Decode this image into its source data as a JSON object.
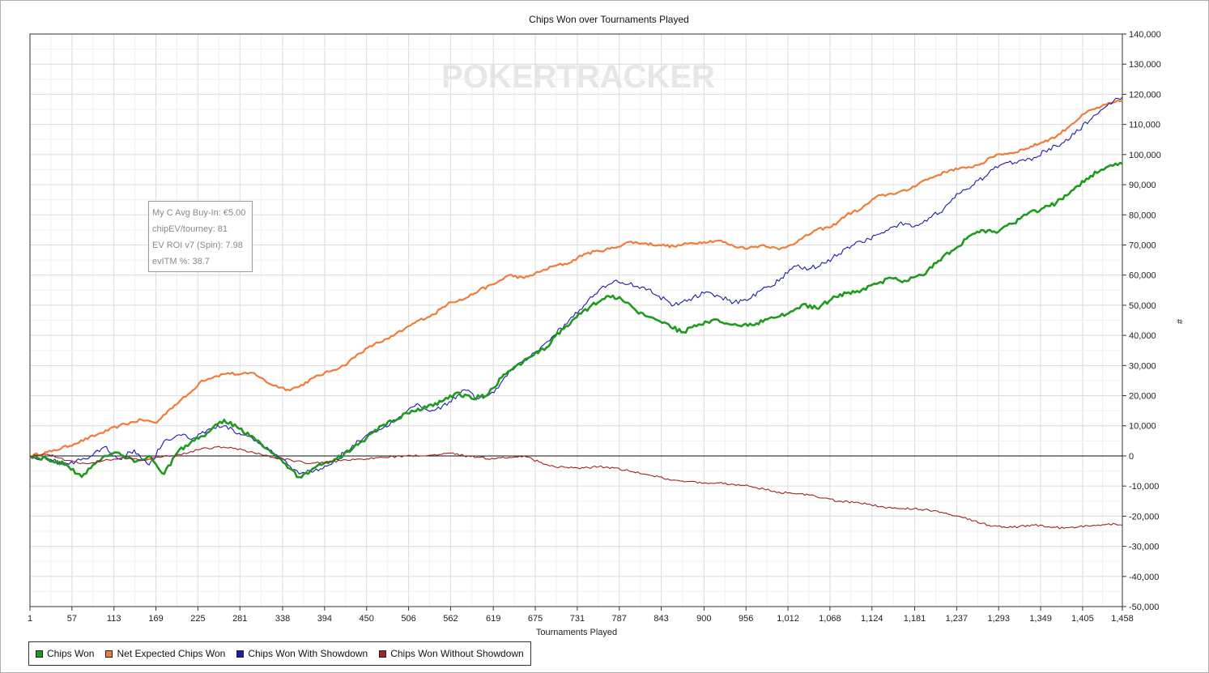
{
  "chart_data": {
    "type": "line",
    "title": "Chips Won over Tournaments Played",
    "xlabel": "Tournaments Played",
    "ylabel": "#",
    "xlim": [
      1,
      1458
    ],
    "ylim": [
      -50000,
      140000
    ],
    "x_ticks": [
      1,
      57,
      113,
      169,
      225,
      281,
      338,
      394,
      450,
      506,
      562,
      619,
      675,
      731,
      787,
      843,
      900,
      956,
      1012,
      1068,
      1124,
      1181,
      1237,
      1293,
      1349,
      1405,
      1458
    ],
    "x_tick_labels": [
      "1",
      "57",
      "113",
      "169",
      "225",
      "281",
      "338",
      "394",
      "450",
      "506",
      "562",
      "619",
      "675",
      "731",
      "787",
      "843",
      "900",
      "956",
      "1,012",
      "1,068",
      "1,124",
      "1,181",
      "1,237",
      "1,293",
      "1,349",
      "1,405",
      "1,458"
    ],
    "y_ticks": [
      140000,
      130000,
      120000,
      110000,
      100000,
      90000,
      80000,
      70000,
      60000,
      50000,
      40000,
      30000,
      20000,
      10000,
      0,
      -10000,
      -20000,
      -30000,
      -40000,
      -50000
    ],
    "y_tick_labels": [
      "140,000",
      "130,000",
      "120,000",
      "110,000",
      "100,000",
      "90,000",
      "80,000",
      "70,000",
      "60,000",
      "50,000",
      "40,000",
      "30,000",
      "20,000",
      "10,000",
      "0",
      "-10,000",
      "-20,000",
      "-30,000",
      "-40,000",
      "-50,000"
    ],
    "grid": true,
    "legend_position": "bottom-left",
    "series": [
      {
        "name": "Net Expected Chips Won",
        "color": "#f07c3c",
        "x": [
          1,
          30,
          60,
          90,
          120,
          150,
          170,
          185,
          200,
          215,
          230,
          250,
          265,
          280,
          300,
          320,
          345,
          360,
          380,
          400,
          420,
          440,
          460,
          480,
          500,
          520,
          540,
          560,
          580,
          600,
          620,
          640,
          660,
          680,
          700,
          720,
          740,
          760,
          780,
          800,
          820,
          840,
          860,
          880,
          900,
          920,
          940,
          960,
          980,
          1000,
          1015,
          1030,
          1050,
          1070,
          1090,
          1110,
          1130,
          1150,
          1170,
          1190,
          1210,
          1230,
          1250,
          1270,
          1290,
          1310,
          1330,
          1350,
          1370,
          1390,
          1410,
          1430,
          1458
        ],
        "y": [
          0,
          1500,
          4000,
          7000,
          10000,
          12000,
          11000,
          15000,
          18000,
          21000,
          25000,
          26500,
          27500,
          27000,
          27500,
          24000,
          22000,
          23000,
          26000,
          28000,
          30000,
          34000,
          37000,
          39000,
          42000,
          45000,
          47000,
          51000,
          52000,
          55000,
          57000,
          60000,
          59000,
          61000,
          63000,
          64000,
          67000,
          68000,
          69000,
          71000,
          70500,
          70000,
          69500,
          70500,
          71000,
          71500,
          69500,
          69000,
          70000,
          68500,
          70000,
          72000,
          75000,
          76000,
          80000,
          82000,
          86000,
          87000,
          88000,
          91000,
          93000,
          95000,
          95500,
          97000,
          100000,
          100500,
          102000,
          104000,
          106000,
          110000,
          114000,
          116000,
          118000
        ]
      },
      {
        "name": "Chips Won With Showdown",
        "color": "#1c1ca8",
        "x": [
          1,
          25,
          50,
          75,
          100,
          120,
          140,
          160,
          180,
          200,
          220,
          240,
          260,
          280,
          300,
          320,
          345,
          360,
          380,
          400,
          420,
          440,
          460,
          480,
          500,
          520,
          540,
          560,
          580,
          600,
          620,
          640,
          660,
          680,
          700,
          720,
          740,
          760,
          780,
          800,
          820,
          840,
          860,
          880,
          900,
          920,
          940,
          960,
          980,
          1000,
          1020,
          1040,
          1060,
          1080,
          1100,
          1120,
          1140,
          1160,
          1180,
          1200,
          1220,
          1240,
          1260,
          1280,
          1300,
          1320,
          1340,
          1360,
          1380,
          1400,
          1420,
          1440,
          1458
        ],
        "y": [
          0,
          -1500,
          -2500,
          -1000,
          3000,
          -1000,
          2000,
          -3000,
          5000,
          7000,
          6000,
          9000,
          10000,
          7500,
          5000,
          2000,
          -3000,
          -6000,
          -5000,
          -3000,
          1000,
          5000,
          8000,
          10000,
          14000,
          17000,
          15000,
          18000,
          22000,
          19000,
          21000,
          28000,
          32000,
          35000,
          40000,
          45000,
          50000,
          55000,
          58000,
          57000,
          56000,
          53000,
          50000,
          52000,
          54000,
          53000,
          51000,
          52000,
          56000,
          58000,
          63000,
          62000,
          64000,
          67000,
          70000,
          72000,
          74000,
          77000,
          76000,
          79000,
          82000,
          87000,
          90000,
          94000,
          97000,
          98000,
          99000,
          102000,
          104000,
          108000,
          113000,
          117000,
          119000
        ]
      },
      {
        "name": "Chips Won",
        "color": "#1f9a1f",
        "x": [
          1,
          25,
          50,
          70,
          85,
          100,
          120,
          140,
          160,
          180,
          200,
          220,
          240,
          260,
          280,
          300,
          320,
          345,
          360,
          375,
          390,
          410,
          430,
          450,
          470,
          490,
          510,
          530,
          550,
          570,
          590,
          610,
          630,
          650,
          670,
          690,
          710,
          730,
          750,
          770,
          790,
          810,
          830,
          850,
          870,
          890,
          910,
          930,
          950,
          970,
          990,
          1010,
          1030,
          1050,
          1070,
          1090,
          1110,
          1130,
          1150,
          1170,
          1190,
          1210,
          1230,
          1250,
          1270,
          1290,
          1310,
          1330,
          1350,
          1370,
          1390,
          1410,
          1430,
          1458
        ],
        "y": [
          0,
          -1000,
          -3000,
          -7000,
          -3000,
          0,
          1000,
          -2000,
          0,
          -6000,
          2000,
          5000,
          8000,
          12000,
          9000,
          6000,
          2000,
          -4000,
          -7000,
          -5000,
          -3000,
          -1000,
          2000,
          6000,
          10000,
          12000,
          15000,
          16000,
          18000,
          21000,
          19000,
          20000,
          26000,
          30000,
          33000,
          36000,
          42000,
          46000,
          50000,
          53000,
          52000,
          48000,
          46000,
          44000,
          41000,
          43000,
          45000,
          44000,
          43000,
          44000,
          46000,
          47000,
          50000,
          49000,
          52000,
          54000,
          55000,
          57000,
          59000,
          58000,
          60000,
          64000,
          68000,
          72000,
          75000,
          74000,
          77000,
          80000,
          82000,
          84000,
          88000,
          92000,
          95000,
          97000
        ]
      },
      {
        "name": "Chips Won Without Showdown",
        "color": "#a32222",
        "x": [
          1,
          25,
          50,
          75,
          100,
          125,
          150,
          175,
          200,
          225,
          250,
          275,
          300,
          325,
          350,
          375,
          400,
          425,
          450,
          475,
          500,
          525,
          550,
          565,
          580,
          600,
          620,
          640,
          660,
          680,
          700,
          720,
          740,
          760,
          780,
          800,
          820,
          840,
          860,
          880,
          900,
          920,
          940,
          960,
          980,
          1000,
          1020,
          1040,
          1060,
          1080,
          1100,
          1120,
          1140,
          1160,
          1180,
          1200,
          1220,
          1240,
          1260,
          1280,
          1300,
          1320,
          1340,
          1360,
          1380,
          1400,
          1420,
          1440,
          1458
        ],
        "y": [
          0,
          500,
          -1500,
          -2500,
          -1500,
          -500,
          -1500,
          -500,
          500,
          2000,
          3000,
          2500,
          1000,
          -500,
          -1500,
          -2500,
          -2000,
          -1500,
          -1000,
          -500,
          0,
          0,
          500,
          1000,
          0,
          -500,
          -1000,
          -500,
          0,
          -2000,
          -3500,
          -4000,
          -4000,
          -3500,
          -4000,
          -5000,
          -6000,
          -7000,
          -8000,
          -8500,
          -9000,
          -9000,
          -9500,
          -10000,
          -11000,
          -12000,
          -12500,
          -13000,
          -14000,
          -15000,
          -15500,
          -16000,
          -17000,
          -17500,
          -17500,
          -18000,
          -19000,
          -20000,
          -21500,
          -23000,
          -23500,
          -23500,
          -23000,
          -23500,
          -24000,
          -23500,
          -23000,
          -22500,
          -23000
        ]
      }
    ]
  },
  "info_box": {
    "line1": "My C Avg Buy-In: €5.00",
    "line2": "chipEV/tourney: 81",
    "line3": "EV ROI v7 (Spin): 7.98",
    "line4": "evITM %: 38.7"
  },
  "watermark": "POKERTRACKER",
  "legend": [
    {
      "label": "Chips Won",
      "color": "#1f9a1f"
    },
    {
      "label": "Net Expected Chips Won",
      "color": "#f07c3c"
    },
    {
      "label": "Chips Won With Showdown",
      "color": "#1c1ca8"
    },
    {
      "label": "Chips Won Without Showdown",
      "color": "#a32222"
    }
  ]
}
